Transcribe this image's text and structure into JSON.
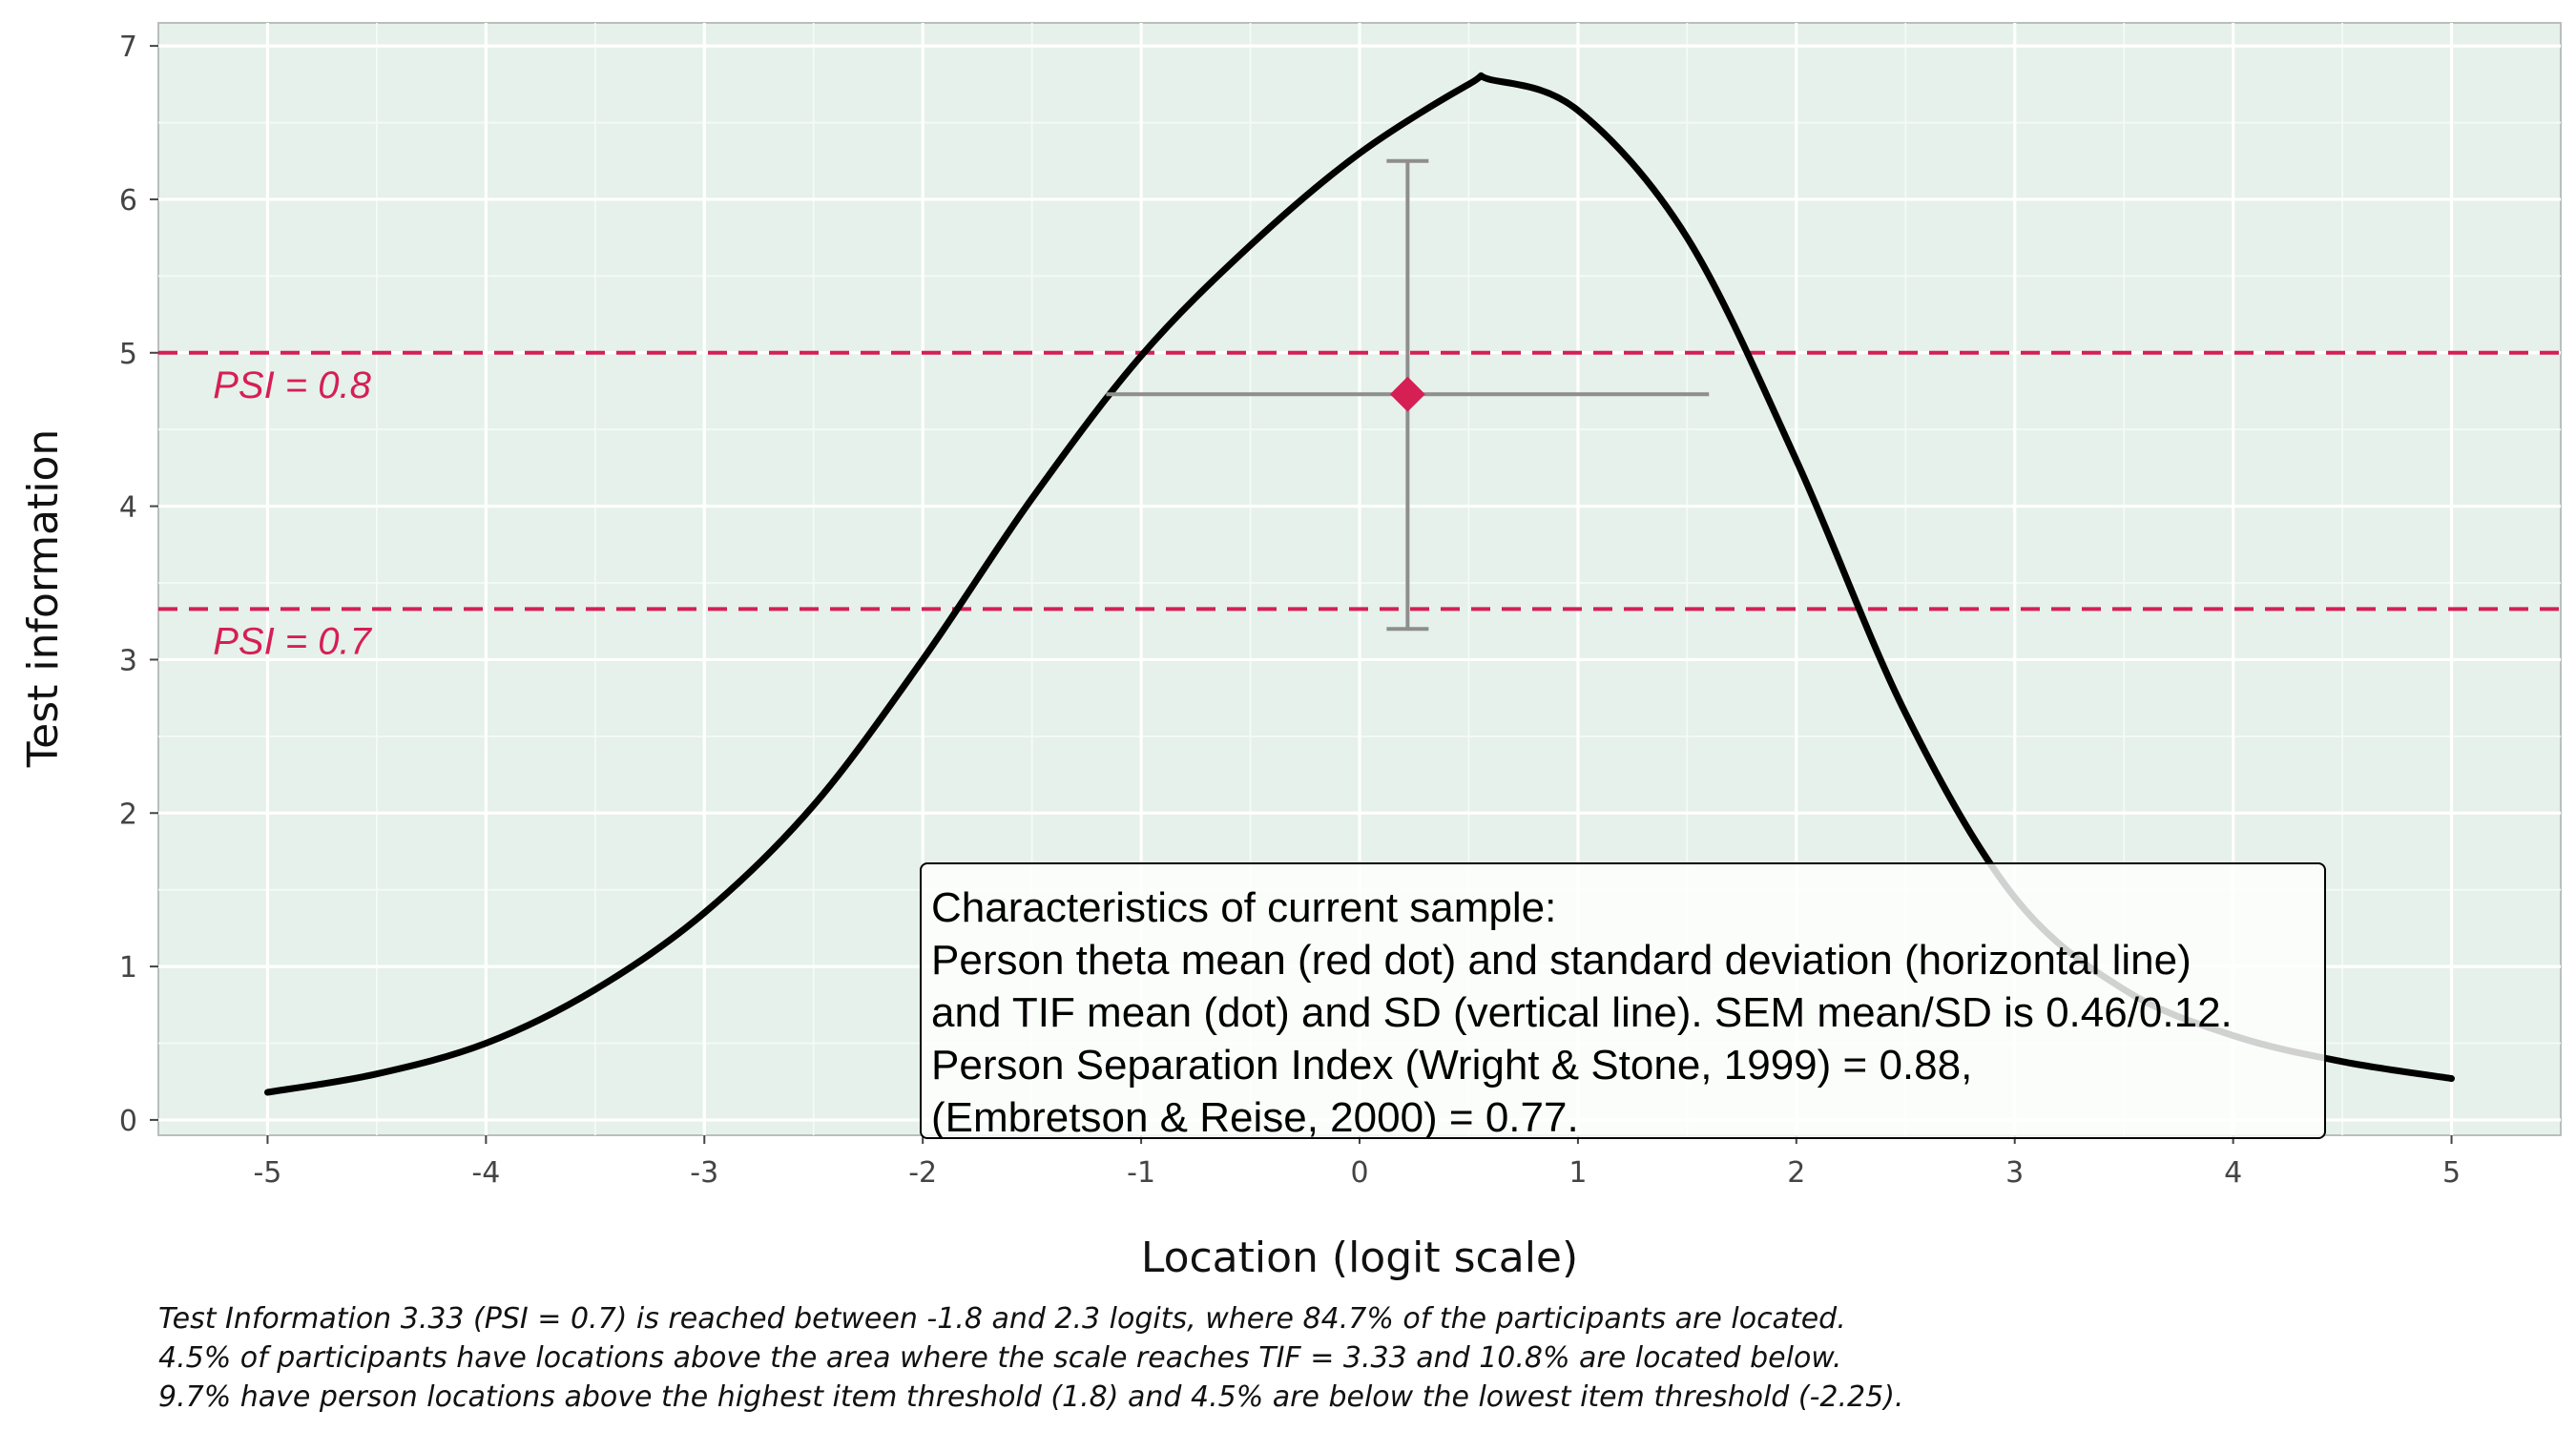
{
  "chart_data": {
    "type": "line",
    "title": "",
    "xlabel": "Location (logit scale)",
    "ylabel": "Test information",
    "xlim": [
      -5.5,
      5.5
    ],
    "ylim": [
      -0.1,
      7.15
    ],
    "xticks": [
      -5,
      -4,
      -3,
      -2,
      -1,
      0,
      1,
      2,
      3,
      4,
      5
    ],
    "yticks": [
      0,
      1,
      2,
      3,
      4,
      5,
      6,
      7
    ],
    "grid": true,
    "series": [
      {
        "color": "#000000",
        "x": [
          -5,
          -4.5,
          -4,
          -3.5,
          -3,
          -2.5,
          -2,
          -1.5,
          -1,
          -0.5,
          0,
          0.5,
          0.6,
          1,
          1.5,
          2,
          2.5,
          3,
          3.5,
          4,
          4.5,
          5
        ],
        "y": [
          0.18,
          0.3,
          0.5,
          0.85,
          1.35,
          2.05,
          3.0,
          4.05,
          4.98,
          5.7,
          6.3,
          6.75,
          6.78,
          6.58,
          5.75,
          4.3,
          2.65,
          1.45,
          0.85,
          0.55,
          0.38,
          0.27
        ]
      }
    ],
    "reference_lines": [
      {
        "label": "PSI = 0.8",
        "y": 5.0,
        "color": "#d51f55"
      },
      {
        "label": "PSI = 0.7",
        "y": 3.33,
        "color": "#d51f55"
      }
    ],
    "person_point": {
      "x": 0.22,
      "y": 4.73,
      "x_range": [
        -1.16,
        1.6
      ],
      "y_range": [
        3.2,
        6.25
      ],
      "marker_color": "#d51f55",
      "errorbar_color": "#8e8e8e"
    },
    "annotation": [
      "Characteristics of current sample:",
      "Person theta mean (red dot) and standard deviation (horizontal line)",
      "and TIF mean (dot) and SD (vertical line). SEM mean/SD is 0.46/0.12.",
      "Person Separation Index (Wright & Stone, 1999) = 0.88,",
      "(Embretson & Reise, 2000) = 0.77."
    ],
    "caption": [
      "Test Information 3.33 (PSI = 0.7) is reached between -1.8 and 2.3 logits, where 84.7% of the participants are located.",
      "4.5% of participants have locations above the area where the scale reaches TIF = 3.33 and 10.8% are located below.",
      "9.7% have person locations above the highest item threshold (1.8) and 4.5% are below the lowest item threshold (-2.25)."
    ]
  }
}
